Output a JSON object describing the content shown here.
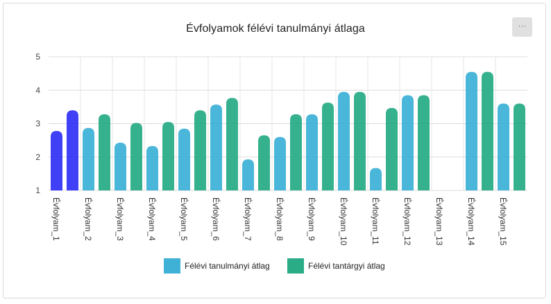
{
  "menu": {
    "label": "···"
  },
  "chart_data": {
    "type": "bar",
    "title": "Évfolyamok félévi tanulmányi átlaga",
    "categories": [
      "Évfolyam_1",
      "Évfolyam_2",
      "Évfolyam_3",
      "Évfolyam_4",
      "Évfolyam_5",
      "Évfolyam_6",
      "Évfolyam_7",
      "Évfolyam_8",
      "Évfolyam_9",
      "Évfolyam_10",
      "Évfolyam_11",
      "Évfolyam_12",
      "Évfolyam_13",
      "Évfolyam_14",
      "Évfolyam_15"
    ],
    "series": [
      {
        "name": "Félévi tanulmányi átlag",
        "color": "#2aa9d2",
        "values": [
          2.78,
          2.87,
          2.43,
          2.33,
          2.85,
          3.57,
          1.93,
          2.6,
          3.28,
          3.95,
          1.67,
          3.85,
          null,
          4.55,
          3.6
        ]
      },
      {
        "name": "Félévi tantárgyi átlag",
        "color": "#13a37a",
        "values": [
          3.4,
          3.28,
          3.02,
          3.05,
          3.4,
          3.77,
          2.65,
          3.28,
          3.63,
          3.95,
          3.47,
          3.85,
          null,
          4.55,
          3.6
        ]
      }
    ],
    "highlight": {
      "category_index": 0,
      "color": "#1f1ff5"
    },
    "ylim": [
      1,
      5
    ],
    "yticks": [
      1,
      2,
      3,
      4,
      5
    ],
    "grid": true,
    "legend_position": "bottom"
  }
}
